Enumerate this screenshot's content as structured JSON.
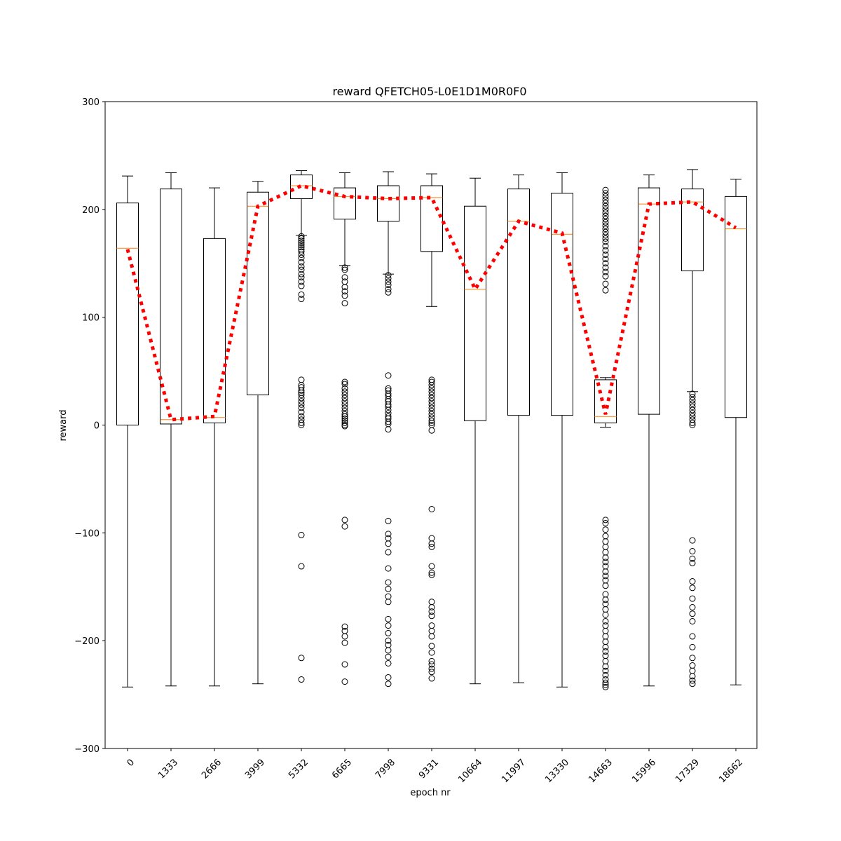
{
  "chart_data": {
    "type": "box",
    "title": "reward QFETCH05-L0E1D1M0R0F0",
    "xlabel": "epoch nr",
    "ylabel": "reward",
    "ylim": [
      -300,
      300
    ],
    "yticks": [
      -300,
      -200,
      -100,
      0,
      100,
      200,
      300
    ],
    "ytick_labels": [
      "−300",
      "−200",
      "−100",
      "0",
      "100",
      "200",
      "300"
    ],
    "categories": [
      "0",
      "1333",
      "2666",
      "3999",
      "5332",
      "6665",
      "7998",
      "9331",
      "10664",
      "11997",
      "13330",
      "14663",
      "15996",
      "17329",
      "18662"
    ],
    "grid": false,
    "colors": {
      "box": "#000000",
      "median": "#ff7f0e",
      "mean_line": "#ff0000",
      "flier": "#000000"
    },
    "boxes": [
      {
        "whislo": -243,
        "q1": 0,
        "med": 164,
        "q3": 206,
        "whishi": 231,
        "fliers": []
      },
      {
        "whislo": -242,
        "q1": 1,
        "med": 5,
        "q3": 219,
        "whishi": 234,
        "fliers": []
      },
      {
        "whislo": -242,
        "q1": 2,
        "med": 7,
        "q3": 173,
        "whishi": 220,
        "fliers": []
      },
      {
        "whislo": -240,
        "q1": 28,
        "med": 203,
        "q3": 216,
        "whishi": 226,
        "fliers": []
      },
      {
        "whislo": 176,
        "q1": 210,
        "med": 222,
        "q3": 232,
        "whishi": 236,
        "fliers": [
          175,
          173,
          171,
          169,
          167,
          165,
          163,
          161,
          158,
          155,
          151,
          147,
          144,
          140,
          137,
          133,
          129,
          121,
          117,
          42,
          37,
          35,
          32,
          30,
          28,
          25,
          22,
          19,
          16,
          12,
          8,
          5,
          2,
          0,
          -102,
          -131,
          -216,
          -236
        ]
      },
      {
        "whislo": 148,
        "q1": 191,
        "med": 212,
        "q3": 220,
        "whishi": 234,
        "fliers": [
          146,
          144,
          137,
          133,
          128,
          124,
          120,
          113,
          40,
          38,
          34,
          31,
          28,
          25,
          22,
          19,
          16,
          13,
          10,
          8,
          6,
          4,
          2,
          0,
          -1,
          -88,
          -94,
          -187,
          -191,
          -196,
          -202,
          -222,
          -238
        ]
      },
      {
        "whislo": 140,
        "q1": 189,
        "med": 210,
        "q3": 222,
        "whishi": 235,
        "fliers": [
          139,
          136,
          133,
          130,
          126,
          123,
          46,
          34,
          32,
          29,
          27,
          24,
          22,
          19,
          17,
          14,
          11,
          8,
          6,
          3,
          1,
          -4,
          -89,
          -101,
          -105,
          -110,
          -118,
          -133,
          -146,
          -152,
          -159,
          -164,
          -180,
          -186,
          -193,
          -200,
          -204,
          -209,
          -215,
          -221,
          -234,
          -240
        ]
      },
      {
        "whislo": 110,
        "q1": 161,
        "med": 211,
        "q3": 222,
        "whishi": 233,
        "fliers": [
          42,
          40,
          37,
          34,
          31,
          28,
          25,
          22,
          19,
          16,
          13,
          10,
          7,
          4,
          2,
          0,
          -5,
          -78,
          -105,
          -110,
          -113,
          -131,
          -137,
          -139,
          -164,
          -169,
          -173,
          -177,
          -186,
          -191,
          -196,
          -205,
          -211,
          -219,
          -222,
          -226,
          -229,
          -235
        ]
      },
      {
        "whislo": -240,
        "q1": 4,
        "med": 126,
        "q3": 203,
        "whishi": 229,
        "fliers": []
      },
      {
        "whislo": -239,
        "q1": 9,
        "med": 189,
        "q3": 219,
        "whishi": 232,
        "fliers": []
      },
      {
        "whislo": -243,
        "q1": 9,
        "med": 177,
        "q3": 215,
        "whishi": 234,
        "fliers": []
      },
      {
        "whislo": -2,
        "q1": 2,
        "med": 8,
        "q3": 42,
        "whishi": 44,
        "fliers": [
          218,
          215,
          212,
          209,
          206,
          203,
          200,
          197,
          194,
          191,
          188,
          185,
          182,
          179,
          176,
          173,
          170,
          166,
          162,
          158,
          154,
          150,
          146,
          142,
          138,
          131,
          125,
          -88,
          -91,
          -97,
          -103,
          -108,
          -113,
          -118,
          -123,
          -127,
          -131,
          -136,
          -140,
          -144,
          -149,
          -157,
          -162,
          -166,
          -171,
          -176,
          -182,
          -186,
          -191,
          -196,
          -201,
          -206,
          -210,
          -214,
          -219,
          -224,
          -228,
          -232,
          -236,
          -239,
          -241,
          -243
        ]
      },
      {
        "whislo": -242,
        "q1": 10,
        "med": 205,
        "q3": 220,
        "whishi": 232,
        "fliers": []
      },
      {
        "whislo": 31,
        "q1": 143,
        "med": 207,
        "q3": 219,
        "whishi": 237,
        "fliers": [
          29,
          26,
          23,
          20,
          17,
          14,
          11,
          8,
          5,
          2,
          0,
          -107,
          -117,
          -124,
          -128,
          -145,
          -151,
          -161,
          -169,
          -175,
          -182,
          -196,
          -206,
          -216,
          -223,
          -228,
          -233,
          -237,
          -240
        ]
      },
      {
        "whislo": -241,
        "q1": 7,
        "med": 182,
        "q3": 212,
        "whishi": 228,
        "fliers": []
      }
    ],
    "mean_line": [
      163,
      5,
      8,
      203,
      222,
      212,
      210,
      211,
      126,
      189,
      178,
      10,
      205,
      207,
      183
    ]
  }
}
